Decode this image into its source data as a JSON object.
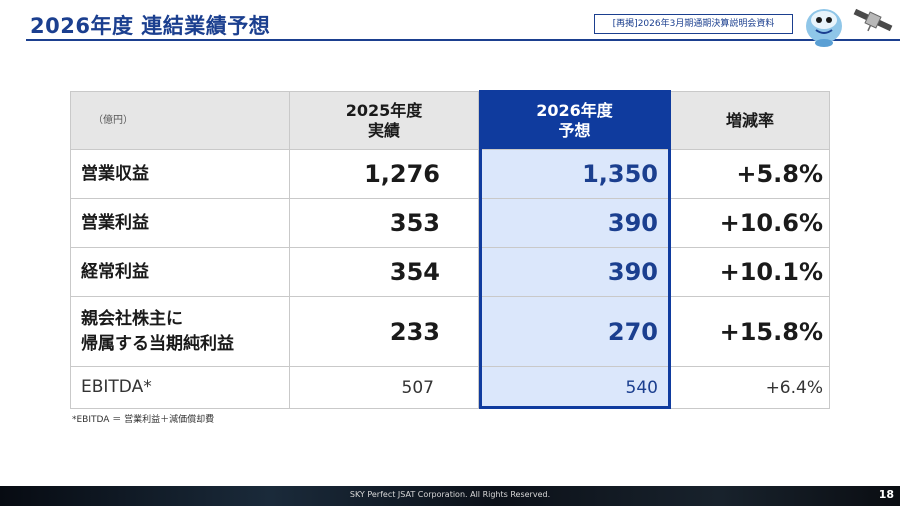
{
  "header": {
    "title": "2026年度 連結業績予想",
    "tag": "[再掲]2026年3月期通期決算説明会資料"
  },
  "table": {
    "unit": "（億円）",
    "col_2025_line1": "2025年度",
    "col_2025_line2": "実績",
    "col_2026_line1": "2026年度",
    "col_2026_line2": "予想",
    "col_rate": "増減率",
    "rows": [
      {
        "label_line1": "営業収益",
        "label_line2": "",
        "v2025": "1,276",
        "v2026": "1,350",
        "rate": "+5.8%"
      },
      {
        "label_line1": "営業利益",
        "label_line2": "",
        "v2025": "353",
        "v2026": "390",
        "rate": "+10.6%"
      },
      {
        "label_line1": "経常利益",
        "label_line2": "",
        "v2025": "354",
        "v2026": "390",
        "rate": "+10.1%"
      },
      {
        "label_line1": "親会社株主に",
        "label_line2": "帰属する当期純利益",
        "v2025": "233",
        "v2026": "270",
        "rate": "+15.8%"
      },
      {
        "label_line1": "EBITDA*",
        "label_line2": "",
        "v2025": "507",
        "v2026": "540",
        "rate": "+6.4%"
      }
    ]
  },
  "footnote": "*EBITDA ＝ 営業利益＋減価償却費",
  "footer": {
    "copyright": "SKY Perfect JSAT Corporation. All Rights Reserved.",
    "page": "18"
  },
  "colors": {
    "brand_navy": "#1b3f8f",
    "highlight_header": "#0f3b9e",
    "highlight_cell": "#dbe7fb"
  }
}
